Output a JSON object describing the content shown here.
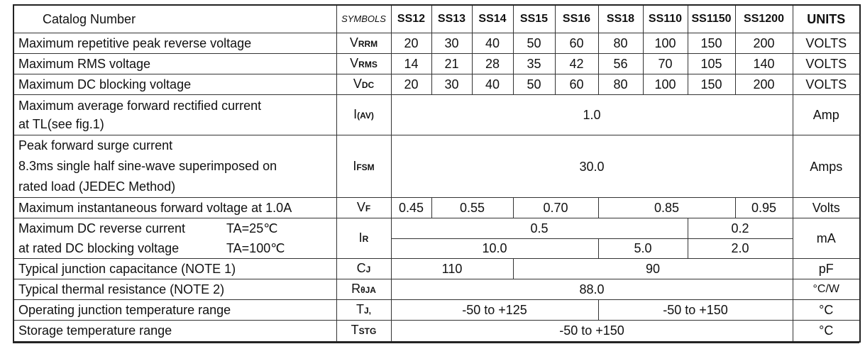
{
  "header": {
    "catalog": "Catalog   Number",
    "symbols": "SYMBOLS",
    "models": [
      "SS12",
      "SS13",
      "SS14",
      "SS15",
      "SS16",
      "SS18",
      "SS110",
      "SS1150",
      "SS1200"
    ],
    "units": "UNITS"
  },
  "vrrm": {
    "label": "Maximum repetitive peak reverse voltage",
    "sym": "V",
    "sub": "RRM",
    "values": [
      "20",
      "30",
      "40",
      "50",
      "60",
      "80",
      "100",
      "150",
      "200"
    ],
    "unit": "VOLTS"
  },
  "vrms": {
    "label": "Maximum RMS voltage",
    "sym": "V",
    "sub": "RMS",
    "values": [
      "14",
      "21",
      "28",
      "35",
      "42",
      "56",
      "70",
      "105",
      "140"
    ],
    "unit": "VOLTS"
  },
  "vdc": {
    "label": "Maximum DC blocking voltage",
    "sym": "V",
    "sub": "DC",
    "values": [
      "20",
      "30",
      "40",
      "50",
      "60",
      "80",
      "100",
      "150",
      "200"
    ],
    "unit": "VOLTS"
  },
  "iav": {
    "line1": "Maximum average forward rectified current",
    "line2": "at TL(see fig.1)",
    "sym": "I",
    "sub": "(AV)",
    "value": "1.0",
    "unit": "Amp"
  },
  "ifsm": {
    "line1": "Peak forward surge current",
    "line2": "8.3ms single half sine-wave superimposed on",
    "line3": "rated load (JEDEC Method)",
    "sym": "I",
    "sub": "FSM",
    "value": "30.0",
    "unit": "Amps"
  },
  "vf": {
    "label": "Maximum instantaneous forward voltage at 1.0A",
    "sym": "V",
    "sub": "F",
    "values": [
      "0.45",
      "0.55",
      "0.70",
      "0.85",
      "0.95"
    ],
    "unit": "Volts"
  },
  "ir": {
    "line1": "Maximum DC reverse current",
    "cond1": "TA=25℃",
    "line2": "at rated DC blocking voltage",
    "cond2": "TA=100℃",
    "sym": "I",
    "sub": "R",
    "row1": [
      "0.5",
      "0.2"
    ],
    "row2": [
      "10.0",
      "5.0",
      "2.0"
    ],
    "unit": "mA"
  },
  "cj": {
    "label": "Typical junction capacitance (NOTE 1)",
    "sym": "C",
    "sub": "J",
    "values": [
      "110",
      "90"
    ],
    "unit": "pF"
  },
  "rth": {
    "label": "Typical thermal resistance (NOTE 2)",
    "sym": "R",
    "sub": "θJA",
    "value": "88.0",
    "unit": "°C/W"
  },
  "tj": {
    "label": "Operating junction temperature range",
    "sym": "T",
    "sub": "J,",
    "values": [
      "-50 to +125",
      "-50 to +150"
    ],
    "unit": "°C"
  },
  "tstg": {
    "label": "Storage temperature range",
    "sym": "T",
    "sub": "STG",
    "value": "-50 to +150",
    "unit": "°C"
  }
}
